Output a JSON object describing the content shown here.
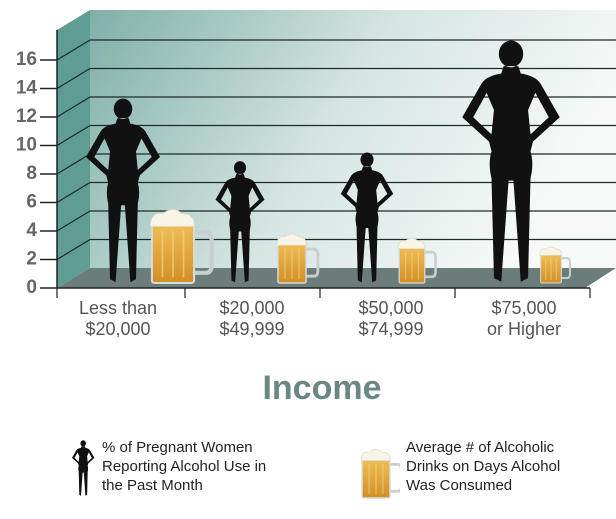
{
  "chart_data": {
    "type": "pictograph",
    "x_label": "Income",
    "categories": [
      [
        "Less than",
        "$20,000"
      ],
      [
        "$20,000",
        "$49,999"
      ],
      [
        "$50,000",
        "$74,999"
      ],
      [
        "$75,000",
        "or Higher"
      ]
    ],
    "series": [
      {
        "name": "% of Pregnant Women Reporting Alcohol Use in the Past Month",
        "color": "#111111",
        "shape": "woman",
        "values": [
          13,
          8.6,
          9.2,
          17.1
        ]
      },
      {
        "name": "Average # of Alcoholic Drinks on Days Alcohol Was Consumed",
        "color": "#e3a83c",
        "shape": "mug",
        "values": [
          5.1,
          3.4,
          3.1,
          2.5
        ]
      }
    ],
    "ylim": [
      0,
      18
    ],
    "yticks": [
      0,
      2,
      4,
      6,
      8,
      10,
      12,
      14,
      16
    ],
    "grid": true
  }
}
